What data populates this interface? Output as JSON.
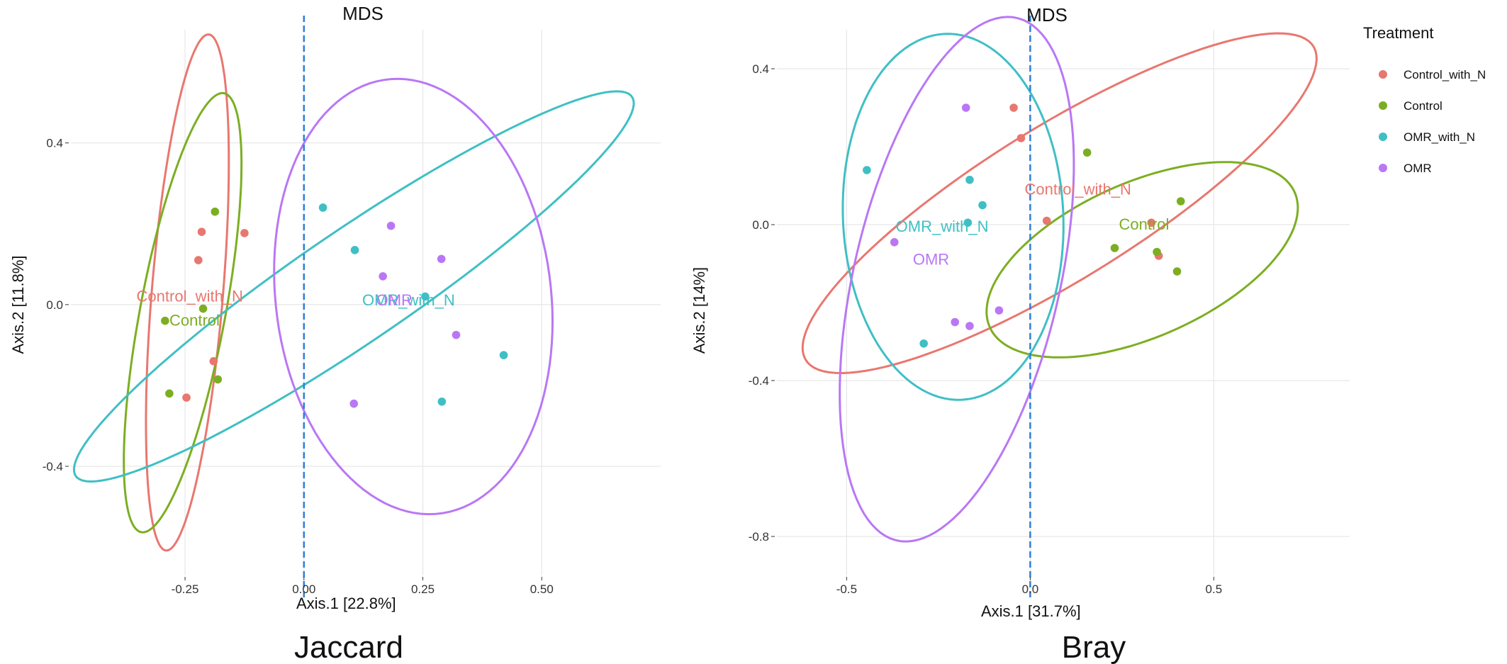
{
  "legend": {
    "title": "Treatment",
    "items": [
      {
        "label": "Control_with_N",
        "color": "#E8776F"
      },
      {
        "label": "Control",
        "color": "#7CAE22"
      },
      {
        "label": "OMR_with_N",
        "color": "#3FBFC4"
      },
      {
        "label": "OMR",
        "color": "#B977F5"
      }
    ]
  },
  "chart_data": [
    {
      "type": "scatter",
      "title": "MDS",
      "caption": "Jaccard",
      "xlabel": "Axis.1   [22.8%]",
      "ylabel": "Axis.2   [11.8%]",
      "xlim": [
        -0.49,
        0.75
      ],
      "ylim": [
        -0.67,
        0.68
      ],
      "xticks": [
        -0.25,
        0.0,
        0.25,
        0.5
      ],
      "xtick_labels": [
        "-0.25",
        "0.00",
        "0.25",
        "0.50"
      ],
      "yticks": [
        -0.4,
        0.0,
        0.4
      ],
      "ytick_labels": [
        "-0.4",
        "0.0",
        "0.4"
      ],
      "vline": 0.0,
      "series": [
        {
          "name": "Control_with_N",
          "color": "#E8776F",
          "points": [
            [
              -0.215,
              0.18
            ],
            [
              -0.222,
              0.11
            ],
            [
              -0.125,
              0.177
            ],
            [
              -0.19,
              -0.14
            ],
            [
              -0.247,
              -0.23
            ]
          ],
          "ellipse": {
            "cx": -0.245,
            "cy": 0.03,
            "rx": 0.64,
            "ry": 0.075,
            "angle": 86
          },
          "label": {
            "x": -0.24,
            "y": 0.02
          }
        },
        {
          "name": "Control",
          "color": "#7CAE22",
          "points": [
            [
              -0.187,
              0.23
            ],
            [
              -0.212,
              -0.01
            ],
            [
              -0.292,
              -0.04
            ],
            [
              -0.181,
              -0.185
            ],
            [
              -0.283,
              -0.22
            ]
          ],
          "ellipse": {
            "cx": -0.255,
            "cy": -0.02,
            "rx": 0.55,
            "ry": 0.09,
            "angle": 81
          },
          "label": {
            "x": -0.23,
            "y": -0.04
          }
        },
        {
          "name": "OMR_with_N",
          "color": "#3FBFC4",
          "points": [
            [
              0.04,
              0.24
            ],
            [
              0.107,
              0.135
            ],
            [
              0.255,
              0.02
            ],
            [
              0.42,
              -0.125
            ],
            [
              0.29,
              -0.24
            ]
          ],
          "ellipse": {
            "cx": 0.105,
            "cy": 0.045,
            "rx": 0.75,
            "ry": 0.13,
            "angle": 39
          },
          "label": {
            "x": 0.22,
            "y": 0.01
          }
        },
        {
          "name": "OMR",
          "color": "#B977F5",
          "points": [
            [
              0.183,
              0.195
            ],
            [
              0.289,
              0.113
            ],
            [
              0.166,
              0.07
            ],
            [
              0.32,
              -0.075
            ],
            [
              0.105,
              -0.245
            ]
          ],
          "ellipse": {
            "cx": 0.23,
            "cy": 0.02,
            "rx": 0.29,
            "ry": 0.54,
            "angle": 5
          },
          "label": {
            "x": 0.19,
            "y": 0.01
          }
        }
      ]
    },
    {
      "type": "scatter",
      "title": "MDS",
      "caption": "Bray",
      "xlabel": "Axis.1   [31.7%]",
      "ylabel": "Axis.2   [14%]",
      "xlim": [
        -0.69,
        0.87
      ],
      "ylim": [
        -0.9,
        0.5
      ],
      "xticks": [
        -0.5,
        0.0,
        0.5
      ],
      "xtick_labels": [
        "-0.5",
        "0.0",
        "0.5"
      ],
      "yticks": [
        -0.8,
        -0.4,
        0.0,
        0.4
      ],
      "ytick_labels": [
        "-0.8",
        "-0.4",
        "0.0",
        "0.4"
      ],
      "vline": 0.0,
      "series": [
        {
          "name": "Control_with_N",
          "color": "#E8776F",
          "points": [
            [
              -0.045,
              0.3
            ],
            [
              -0.025,
              0.222
            ],
            [
              0.045,
              0.01
            ],
            [
              0.33,
              0.005
            ],
            [
              0.35,
              -0.08
            ]
          ],
          "ellipse": {
            "cx": 0.08,
            "cy": 0.055,
            "rx": 0.8,
            "ry": 0.2,
            "angle": 30
          },
          "label": {
            "x": 0.13,
            "y": 0.09
          }
        },
        {
          "name": "Control",
          "color": "#7CAE22",
          "points": [
            [
              0.155,
              0.185
            ],
            [
              0.41,
              0.06
            ],
            [
              0.23,
              -0.06
            ],
            [
              0.345,
              -0.07
            ],
            [
              0.4,
              -0.12
            ]
          ],
          "ellipse": {
            "cx": 0.305,
            "cy": -0.09,
            "rx": 0.45,
            "ry": 0.2,
            "angle": 22
          },
          "label": {
            "x": 0.31,
            "y": 0.0
          }
        },
        {
          "name": "OMR_with_N",
          "color": "#3FBFC4",
          "points": [
            [
              -0.445,
              0.14
            ],
            [
              -0.165,
              0.115
            ],
            [
              -0.13,
              0.05
            ],
            [
              -0.17,
              0.005
            ],
            [
              -0.29,
              -0.305
            ]
          ],
          "ellipse": {
            "cx": -0.21,
            "cy": 0.02,
            "rx": 0.3,
            "ry": 0.47,
            "angle": 3
          },
          "label": {
            "x": -0.24,
            "y": -0.005
          }
        },
        {
          "name": "OMR",
          "color": "#B977F5",
          "points": [
            [
              -0.175,
              0.3
            ],
            [
              -0.37,
              -0.045
            ],
            [
              -0.205,
              -0.25
            ],
            [
              -0.165,
              -0.26
            ],
            [
              -0.085,
              -0.22
            ]
          ],
          "ellipse": {
            "cx": -0.2,
            "cy": -0.14,
            "rx": 0.69,
            "ry": 0.28,
            "angle": 76
          },
          "label": {
            "x": -0.27,
            "y": -0.09
          }
        }
      ]
    }
  ]
}
